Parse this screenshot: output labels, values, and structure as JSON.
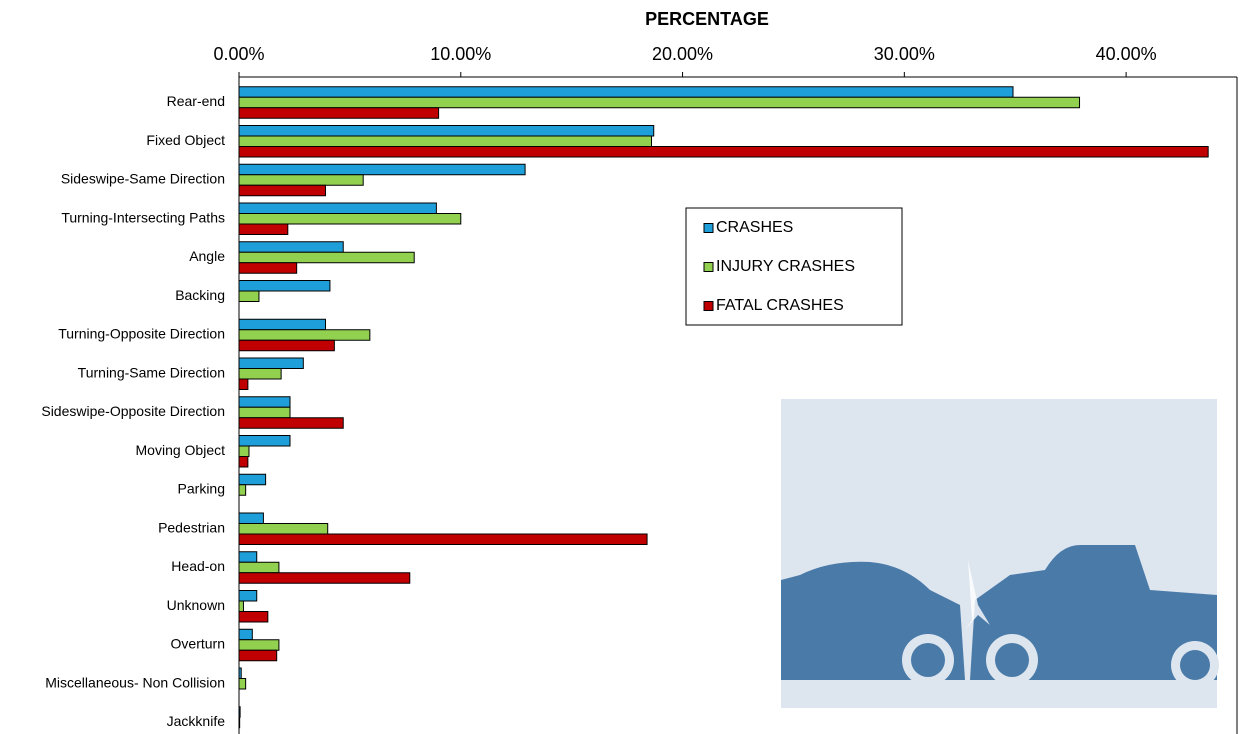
{
  "chart_data": {
    "type": "hbar",
    "title": "PERCENTAGE",
    "categories": [
      "Rear-end",
      "Fixed Object",
      "Sideswipe-Same Direction",
      "Turning-Intersecting Paths",
      "Angle",
      "Backing",
      "Turning-Opposite Direction",
      "Turning-Same Direction",
      "Sideswipe-Opposite Direction",
      "Moving Object",
      "Parking",
      "Pedestrian",
      "Head-on",
      "Unknown",
      "Overturn",
      "Miscellaneous- Non Collision",
      "Jackknife"
    ],
    "series": [
      {
        "name": "CRASHES",
        "color": "#1f9fd9",
        "values": [
          34.9,
          18.7,
          12.9,
          8.9,
          4.7,
          4.1,
          3.9,
          2.9,
          2.3,
          2.3,
          1.2,
          1.1,
          0.8,
          0.8,
          0.6,
          0.1,
          0.05
        ]
      },
      {
        "name": "INJURY CRASHES",
        "color": "#92d050",
        "values": [
          37.9,
          18.6,
          5.6,
          10.0,
          7.9,
          0.9,
          5.9,
          1.9,
          2.3,
          0.45,
          0.3,
          4.0,
          1.8,
          0.2,
          1.8,
          0.3,
          0.03
        ]
      },
      {
        "name": "FATAL CRASHES",
        "color": "#c00000",
        "values": [
          9.0,
          43.7,
          3.9,
          2.2,
          2.6,
          0,
          4.3,
          0.4,
          4.7,
          0.4,
          0,
          18.4,
          7.7,
          1.3,
          1.7,
          0,
          0
        ]
      }
    ],
    "xlim": [
      0,
      45
    ],
    "xticks": [
      {
        "value": 0,
        "label": "0.00%"
      },
      {
        "value": 10,
        "label": "10.00%"
      },
      {
        "value": 20,
        "label": "20.00%"
      },
      {
        "value": 30,
        "label": "30.00%"
      },
      {
        "value": 40,
        "label": "40.00%"
      }
    ]
  }
}
